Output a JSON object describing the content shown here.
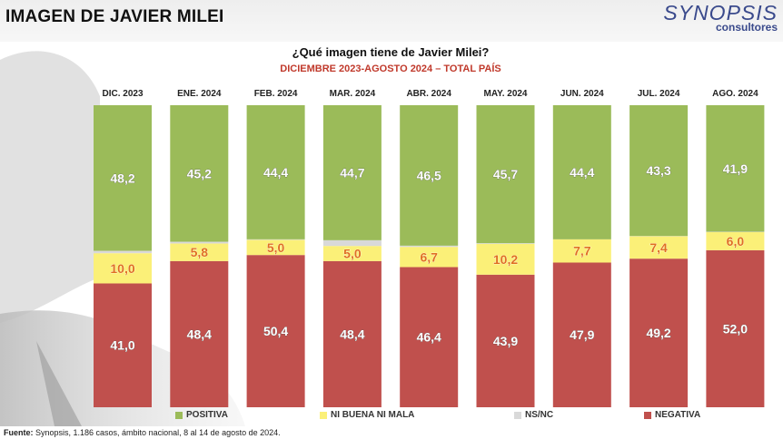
{
  "header": {
    "title": "IMAGEN DE JAVIER MILEI",
    "brand_name": "SYNOPSIS",
    "brand_sub": "consultores"
  },
  "chart_data": {
    "type": "bar",
    "stacked": true,
    "title": "¿Qué imagen tiene de Javier Milei?",
    "subtitle": "DICIEMBRE 2023-AGOSTO 2024 – TOTAL PAÍS",
    "categories": [
      "DIC. 2023",
      "ENE. 2024",
      "FEB. 2024",
      "MAR. 2024",
      "ABR. 2024",
      "MAY. 2024",
      "JUN. 2024",
      "JUL. 2024",
      "AGO. 2024"
    ],
    "series": [
      {
        "name": "NEGATIVA",
        "color": "#c0504d",
        "values": [
          41.0,
          48.4,
          50.4,
          48.4,
          46.4,
          43.9,
          47.9,
          49.2,
          52.0
        ],
        "labels": [
          "41,0",
          "48,4",
          "50,4",
          "48,4",
          "46,4",
          "43,9",
          "47,9",
          "49,2",
          "52,0"
        ]
      },
      {
        "name": "NI BUENA NI MALA",
        "color": "#fbf078",
        "values": [
          10.0,
          5.8,
          5.0,
          5.0,
          6.7,
          10.2,
          7.7,
          7.4,
          6.0
        ],
        "labels": [
          "10,0",
          "5,8",
          "5,0",
          "5,0",
          "6,7",
          "10,2",
          "7,7",
          "7,4",
          "6,0"
        ]
      },
      {
        "name": "NS/NC",
        "color": "#d9d9d9",
        "values": [
          0.8,
          0.6,
          0.2,
          1.9,
          0.4,
          0.2,
          0.0,
          0.1,
          0.1
        ],
        "labels": []
      },
      {
        "name": "POSITIVA",
        "color": "#9bbb59",
        "values": [
          48.2,
          45.2,
          44.4,
          44.7,
          46.5,
          45.7,
          44.4,
          43.3,
          41.9
        ],
        "labels": [
          "48,2",
          "45,2",
          "44,4",
          "44,7",
          "46,5",
          "45,7",
          "44,4",
          "43,3",
          "41,9"
        ]
      }
    ],
    "legend_order": [
      "POSITIVA",
      "NI BUENA NI MALA",
      "NS/NC",
      "NEGATIVA"
    ],
    "ylim": [
      0,
      100
    ],
    "legend_position": "bottom",
    "grid": false
  },
  "footer": {
    "source_label": "Fuente:",
    "source_text": " Synopsis, 1.186 casos, ámbito nacional, 8 al 14 de agosto de 2024."
  }
}
